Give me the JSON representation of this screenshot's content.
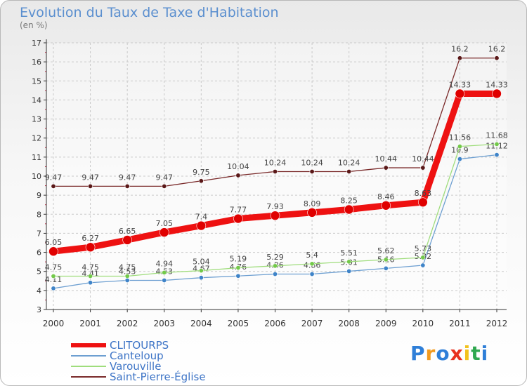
{
  "header": {
    "title": "Evolution du Taux de Taxe d'Habitation",
    "unit": "(en %)"
  },
  "chart_data": {
    "type": "line",
    "title": "Evolution du Taux de Taxe d'Habitation",
    "ylabel": "(en %)",
    "xlabel": "",
    "ylim": [
      3,
      17
    ],
    "yticks": [
      "3",
      "4",
      "5",
      "6",
      "7",
      "8",
      "9",
      "10",
      "11",
      "12",
      "13",
      "14",
      "15",
      "16",
      "17"
    ],
    "categories": [
      "2000",
      "2001",
      "2002",
      "2003",
      "2004",
      "2005",
      "2006",
      "2007",
      "2008",
      "2009",
      "2010",
      "2011",
      "2012"
    ],
    "grid": true,
    "legend_position": "bottom-left",
    "series": [
      {
        "name": "Saint-Pierre-Église",
        "color": "#7a2a2a",
        "values": [
          9.47,
          9.47,
          9.47,
          9.47,
          9.75,
          10.04,
          10.24,
          10.24,
          10.24,
          10.44,
          10.44,
          16.2,
          16.2
        ],
        "labels": [
          "9.47",
          "9.47",
          "9.47",
          "9.47",
          "9.75",
          "10.04",
          "10.24",
          "10.24",
          "10.24",
          "10.44",
          "10.44",
          "16.2",
          "16.2"
        ]
      },
      {
        "name": "Canteloup",
        "color": "#6d9fd1",
        "values": [
          4.11,
          4.41,
          4.53,
          4.53,
          4.67,
          4.76,
          4.86,
          4.86,
          5.01,
          5.16,
          5.32,
          10.9,
          11.12
        ],
        "labels": [
          "4.11",
          "4.41",
          "4.53",
          "4.53",
          "4.67",
          "4.76",
          "4.86",
          "4.86",
          "5.01",
          "5.16",
          "5.32",
          "10.9",
          "11.12"
        ]
      },
      {
        "name": "Varouville",
        "color": "#9fdd7c",
        "values": [
          4.75,
          4.75,
          4.75,
          4.94,
          5.04,
          5.19,
          5.29,
          5.4,
          5.51,
          5.62,
          5.73,
          11.56,
          11.68
        ],
        "labels": [
          "4.75",
          "4.75",
          "4.75",
          "4.94",
          "5.04",
          "5.19",
          "5.29",
          "5.4",
          "5.51",
          "5.62",
          "5.73",
          "11.56",
          "11.68"
        ]
      },
      {
        "name": "CLITOURPS",
        "color": "#ee1111",
        "values": [
          6.05,
          6.27,
          6.65,
          7.05,
          7.4,
          7.77,
          7.93,
          8.09,
          8.25,
          8.46,
          8.63,
          14.33,
          14.33
        ],
        "labels": [
          "6.05",
          "6.27",
          "6.65",
          "7.05",
          "7.4",
          "7.77",
          "7.93",
          "8.09",
          "8.25",
          "8.46",
          "8.63",
          "14.33",
          "14.33"
        ]
      }
    ]
  },
  "legend": [
    {
      "label": "CLITOURPS",
      "color": "#ee1111"
    },
    {
      "label": "Canteloup",
      "color": "#6d9fd1"
    },
    {
      "label": "Varouville",
      "color": "#9fdd7c"
    },
    {
      "label": "Saint-Pierre-Église",
      "color": "#7a2a2a"
    }
  ],
  "logo": {
    "text": "Proxiti",
    "letters": [
      "P",
      "r",
      "o",
      "x",
      "i",
      "t",
      "i"
    ],
    "colors": [
      "#2f7fd8",
      "#f29a1d",
      "#2f7fd8",
      "#e8311f",
      "#f2c21d",
      "#2fa84f",
      "#2f7fd8"
    ]
  }
}
